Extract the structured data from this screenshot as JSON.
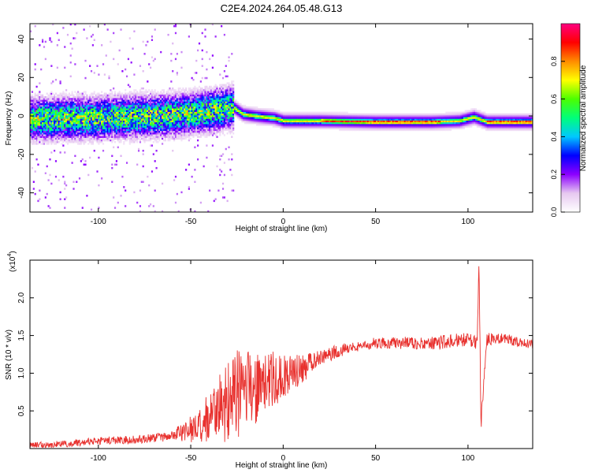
{
  "title": "C2E4.2024.264.05.48.G13",
  "colors": {
    "snr_line": "#e8312e",
    "colormap": [
      "#ffffff",
      "#e6c8f0",
      "#8c00ff",
      "#0000ff",
      "#00c8ff",
      "#00ff7a",
      "#4cff00",
      "#ffff00",
      "#ff8c00",
      "#ff0000",
      "#ff0080"
    ]
  },
  "chart_data": [
    {
      "type": "heatmap",
      "xlabel": "Height of straight line (km)",
      "ylabel": "Frequency (Hz)",
      "xlim": [
        -137,
        135
      ],
      "ylim": [
        -50,
        48
      ],
      "xticks": [
        -100,
        -50,
        0,
        50,
        100
      ],
      "xtick_labels": [
        "-100",
        "-50",
        "0",
        "50",
        "100"
      ],
      "yticks": [
        -40,
        -20,
        0,
        20,
        40
      ],
      "ytick_labels": [
        "-40",
        "-20",
        "0",
        "20",
        "40"
      ],
      "grid": false,
      "colorbar": {
        "label": "Normalized spectral amplitude",
        "range": [
          0,
          1
        ],
        "ticks": [
          0.0,
          0.2,
          0.4,
          0.6,
          0.8
        ],
        "tick_labels": [
          "0.0",
          "0.2",
          "0.4",
          "0.6",
          "0.8"
        ]
      },
      "ridge": {
        "x": [
          -137,
          -100,
          -60,
          -45,
          -35,
          -27,
          -22,
          -15,
          -5,
          0,
          5,
          20,
          50,
          80,
          95,
          103,
          110,
          135
        ],
        "freq": [
          -2,
          -1.5,
          0,
          1.5,
          3,
          4,
          0.5,
          -0.5,
          -1.5,
          -3,
          -3,
          -3,
          -3.5,
          -3.5,
          -3,
          -1,
          -3.5,
          -3.5
        ]
      },
      "noisy_spread_region": {
        "x_range": [
          -137,
          -27
        ],
        "freq_halfwidth": 6
      }
    },
    {
      "type": "line",
      "xlabel": "Height of straight line (km)",
      "ylabel": "SNR (10 * v/v)",
      "y_multiplier": "(x10",
      "y_multiplier_exp": "4",
      "y_multiplier_close": ")",
      "xlim": [
        -137,
        135
      ],
      "ylim": [
        0,
        2.5
      ],
      "xticks": [
        -100,
        -50,
        0,
        50,
        100
      ],
      "xtick_labels": [
        "-100",
        "-50",
        "0",
        "50",
        "100"
      ],
      "yticks": [
        0.5,
        1.0,
        1.5,
        2.0
      ],
      "ytick_labels": [
        "0.5",
        "1.0",
        "1.5",
        "2.0"
      ],
      "grid": false,
      "series": [
        {
          "trend_x": [
            -137,
            -120,
            -100,
            -80,
            -65,
            -55,
            -45,
            -38,
            -30,
            -25,
            -20,
            -10,
            0,
            10,
            20,
            30,
            50,
            80,
            100,
            105,
            106,
            107,
            110,
            120,
            135
          ],
          "trend_y": [
            0.04,
            0.06,
            0.1,
            0.12,
            0.15,
            0.22,
            0.3,
            0.45,
            0.6,
            0.72,
            0.78,
            0.88,
            0.96,
            1.05,
            1.2,
            1.3,
            1.4,
            1.4,
            1.45,
            1.4,
            2.5,
            0.3,
            1.45,
            1.45,
            1.38
          ],
          "noise_x": [
            -137,
            -60,
            -45,
            -35,
            -25,
            -15,
            0,
            20,
            40,
            100,
            135
          ],
          "noise_amp": [
            0.04,
            0.06,
            0.25,
            0.45,
            0.6,
            0.5,
            0.3,
            0.1,
            0.07,
            0.1,
            0.06
          ]
        }
      ]
    }
  ]
}
